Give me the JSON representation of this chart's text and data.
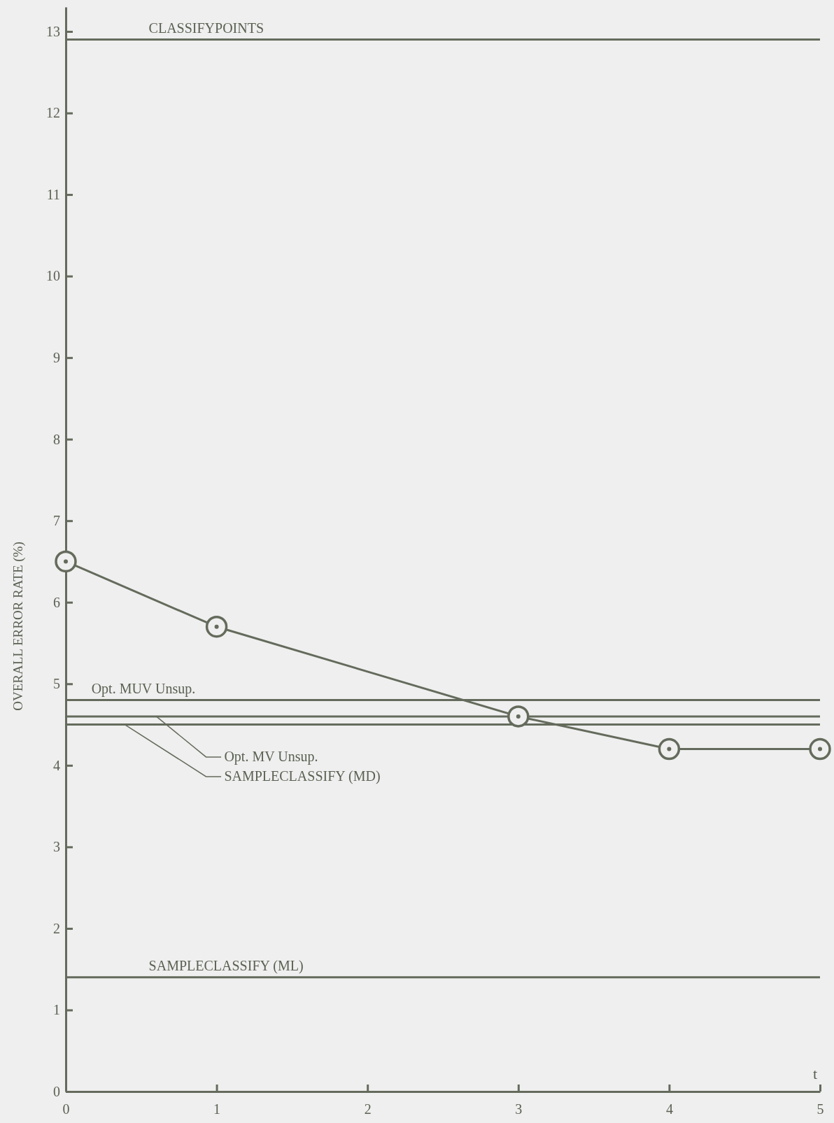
{
  "chart_data": {
    "type": "line",
    "xlabel": "t",
    "ylabel": "OVERALL ERROR RATE (%)",
    "x": [
      0,
      1,
      3,
      4,
      5
    ],
    "series": [
      {
        "color": "#646b5c",
        "values": [
          6.5,
          5.7,
          4.6,
          4.2,
          4.2
        ]
      }
    ],
    "marker": "circle",
    "xlim": [
      0,
      5
    ],
    "xticks": [
      0,
      1,
      2,
      3,
      4,
      5
    ],
    "ylim": [
      0,
      13.3
    ],
    "yticks": [
      0,
      1,
      2,
      3,
      4,
      5,
      6,
      7,
      8,
      9,
      10,
      11,
      12,
      13
    ],
    "ref_lines": [
      {
        "axis": "y",
        "value": 12.9,
        "label": "CLASSIFYPOINTS",
        "color": "#646b5c"
      },
      {
        "axis": "y",
        "value": 4.8,
        "label": "Opt. MUV Unsup.",
        "color": "#646b5c"
      },
      {
        "axis": "y",
        "value": 4.6,
        "label": "Opt. MV Unsup.",
        "color": "#646b5c"
      },
      {
        "axis": "y",
        "value": 4.5,
        "label": "SAMPLECLASSIFY (MD)",
        "color": "#646b5c"
      },
      {
        "axis": "y",
        "value": 1.4,
        "label": "SAMPLECLASSIFY (ML)",
        "color": "#646b5c"
      }
    ]
  }
}
